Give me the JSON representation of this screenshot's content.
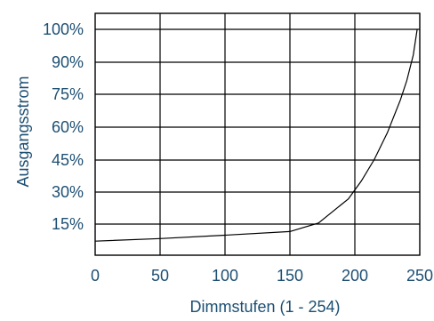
{
  "chart_data": {
    "type": "line",
    "xlabel": "Dimmstufen (1 - 254)",
    "ylabel": "Ausgangsstrom",
    "xlim": [
      0,
      250
    ],
    "x_ticks": [
      "0",
      "50",
      "100",
      "150",
      "200",
      "250"
    ],
    "y_ticks": [
      "15%",
      "30%",
      "45%",
      "60%",
      "75%",
      "90%",
      "100%"
    ],
    "grid": true,
    "series": [
      {
        "x": [
          0,
          50,
          100,
          150,
          172,
          195,
          205,
          215,
          225,
          235,
          240,
          245,
          248
        ],
        "y": [
          7.0,
          8.2,
          9.8,
          11.5,
          15.5,
          26.8,
          35.2,
          45.3,
          57.4,
          72.3,
          81.4,
          92.2,
          100.0
        ]
      }
    ]
  }
}
